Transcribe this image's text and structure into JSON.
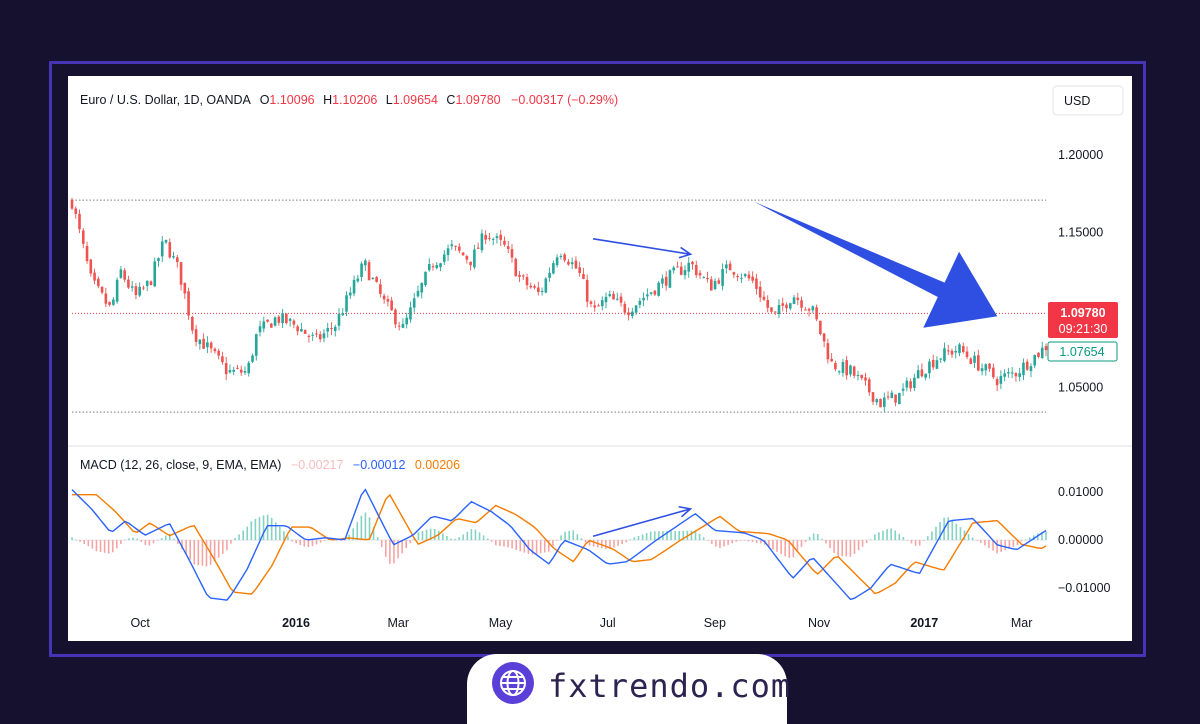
{
  "header": {
    "symbol": "Euro / U.S. Dollar, 1D, OANDA",
    "o_label": "O",
    "o_value": "1.10096",
    "h_label": "H",
    "h_value": "1.10206",
    "l_label": "L",
    "l_value": "1.09654",
    "c_label": "C",
    "c_value": "1.09780",
    "change": "−0.00317 (−0.29%)"
  },
  "currency_button": "USD",
  "price_tag": {
    "value": "1.09780",
    "timer": "09:21:30",
    "color": "#f23645"
  },
  "ma_tag": {
    "value": "1.07654",
    "color": "#089981"
  },
  "macd_header": {
    "label": "MACD (12, 26, close, 9, EMA, EMA)",
    "hist": "−0.00217",
    "macd": "−0.00012",
    "signal": "0.00206"
  },
  "brand": "fxtrendo.com",
  "colors": {
    "up": "#26a69a",
    "down": "#ef5350",
    "macd": "#2962ff",
    "signal": "#f57c00",
    "arrow": "#2f4fe3"
  },
  "chart_data": [
    {
      "type": "candlestick",
      "title": "Euro / U.S. Dollar, 1D, OANDA",
      "y_ticks": [
        "1.20000",
        "1.15000",
        "1.05000"
      ],
      "ylim": [
        1.016,
        1.215
      ],
      "x_ticks": [
        "Oct",
        "2016",
        "Mar",
        "May",
        "Jul",
        "Sep",
        "Nov",
        "2017",
        "Mar"
      ],
      "resistance": 1.171,
      "support": 1.034,
      "last_price": 1.0978,
      "close_path": [
        {
          "t": 0,
          "v": 1.17
        },
        {
          "t": 0.02,
          "v": 1.118
        },
        {
          "t": 0.04,
          "v": 1.1
        },
        {
          "t": 0.05,
          "v": 1.125
        },
        {
          "t": 0.065,
          "v": 1.108
        },
        {
          "t": 0.08,
          "v": 1.118
        },
        {
          "t": 0.095,
          "v": 1.145
        },
        {
          "t": 0.11,
          "v": 1.125
        },
        {
          "t": 0.125,
          "v": 1.085
        },
        {
          "t": 0.14,
          "v": 1.075
        },
        {
          "t": 0.16,
          "v": 1.06
        },
        {
          "t": 0.18,
          "v": 1.06
        },
        {
          "t": 0.19,
          "v": 1.085
        },
        {
          "t": 0.21,
          "v": 1.095
        },
        {
          "t": 0.23,
          "v": 1.09
        },
        {
          "t": 0.25,
          "v": 1.08
        },
        {
          "t": 0.27,
          "v": 1.09
        },
        {
          "t": 0.3,
          "v": 1.13
        },
        {
          "t": 0.32,
          "v": 1.105
        },
        {
          "t": 0.34,
          "v": 1.088
        },
        {
          "t": 0.355,
          "v": 1.11
        },
        {
          "t": 0.37,
          "v": 1.13
        },
        {
          "t": 0.39,
          "v": 1.14
        },
        {
          "t": 0.41,
          "v": 1.132
        },
        {
          "t": 0.425,
          "v": 1.15
        },
        {
          "t": 0.445,
          "v": 1.14
        },
        {
          "t": 0.46,
          "v": 1.12
        },
        {
          "t": 0.48,
          "v": 1.11
        },
        {
          "t": 0.5,
          "v": 1.14
        },
        {
          "t": 0.52,
          "v": 1.125
        },
        {
          "t": 0.535,
          "v": 1.098
        },
        {
          "t": 0.55,
          "v": 1.108
        },
        {
          "t": 0.57,
          "v": 1.1
        },
        {
          "t": 0.59,
          "v": 1.11
        },
        {
          "t": 0.61,
          "v": 1.12
        },
        {
          "t": 0.635,
          "v": 1.13
        },
        {
          "t": 0.655,
          "v": 1.115
        },
        {
          "t": 0.675,
          "v": 1.128
        },
        {
          "t": 0.7,
          "v": 1.118
        },
        {
          "t": 0.72,
          "v": 1.095
        },
        {
          "t": 0.74,
          "v": 1.11
        },
        {
          "t": 0.76,
          "v": 1.1
        },
        {
          "t": 0.78,
          "v": 1.065
        },
        {
          "t": 0.8,
          "v": 1.06
        },
        {
          "t": 0.83,
          "v": 1.04
        },
        {
          "t": 0.85,
          "v": 1.045
        },
        {
          "t": 0.87,
          "v": 1.06
        },
        {
          "t": 0.89,
          "v": 1.07
        },
        {
          "t": 0.91,
          "v": 1.075
        },
        {
          "t": 0.93,
          "v": 1.065
        },
        {
          "t": 0.95,
          "v": 1.055
        },
        {
          "t": 0.97,
          "v": 1.06
        },
        {
          "t": 1.0,
          "v": 1.0765
        }
      ],
      "annotations": [
        {
          "kind": "thin-arrow",
          "from": {
            "t": 0.535,
            "v": 1.146
          },
          "to": {
            "t": 0.635,
            "v": 1.136
          }
        },
        {
          "kind": "bold-arrow",
          "from": {
            "t": 0.7,
            "v": 1.17
          },
          "to": {
            "t": 0.95,
            "v": 1.096
          }
        }
      ]
    },
    {
      "type": "macd",
      "title": "MACD (12, 26, close, 9, EMA, EMA)",
      "y_ticks": [
        "0.01000",
        "0.00000",
        "−0.01000"
      ],
      "ylim": [
        -0.0135,
        0.0125
      ],
      "macd_path": [
        {
          "t": 0,
          "v": 0.0105
        },
        {
          "t": 0.02,
          "v": 0.0065
        },
        {
          "t": 0.04,
          "v": 0.0015
        },
        {
          "t": 0.055,
          "v": 0.004
        },
        {
          "t": 0.075,
          "v": 0.001
        },
        {
          "t": 0.1,
          "v": 0.0035
        },
        {
          "t": 0.12,
          "v": -0.004
        },
        {
          "t": 0.14,
          "v": -0.012
        },
        {
          "t": 0.16,
          "v": -0.0125
        },
        {
          "t": 0.18,
          "v": -0.006
        },
        {
          "t": 0.2,
          "v": 0.003
        },
        {
          "t": 0.22,
          "v": 0.003
        },
        {
          "t": 0.24,
          "v": 0.0
        },
        {
          "t": 0.26,
          "v": 0.0005
        },
        {
          "t": 0.28,
          "v": 0.0
        },
        {
          "t": 0.3,
          "v": 0.011
        },
        {
          "t": 0.33,
          "v": -0.001
        },
        {
          "t": 0.35,
          "v": 0.001
        },
        {
          "t": 0.37,
          "v": 0.005
        },
        {
          "t": 0.39,
          "v": 0.004
        },
        {
          "t": 0.41,
          "v": 0.008
        },
        {
          "t": 0.43,
          "v": 0.006
        },
        {
          "t": 0.45,
          "v": 0.003
        },
        {
          "t": 0.47,
          "v": -0.002
        },
        {
          "t": 0.49,
          "v": -0.005
        },
        {
          "t": 0.505,
          "v": 0.0
        },
        {
          "t": 0.53,
          "v": -0.002
        },
        {
          "t": 0.55,
          "v": -0.005
        },
        {
          "t": 0.57,
          "v": -0.0045
        },
        {
          "t": 0.6,
          "v": 0.0
        },
        {
          "t": 0.64,
          "v": 0.0055
        },
        {
          "t": 0.66,
          "v": 0.002
        },
        {
          "t": 0.69,
          "v": 0.0015
        },
        {
          "t": 0.71,
          "v": 0.0
        },
        {
          "t": 0.74,
          "v": -0.008
        },
        {
          "t": 0.76,
          "v": -0.0035
        },
        {
          "t": 0.8,
          "v": -0.0125
        },
        {
          "t": 0.82,
          "v": -0.01
        },
        {
          "t": 0.84,
          "v": -0.005
        },
        {
          "t": 0.87,
          "v": -0.007
        },
        {
          "t": 0.9,
          "v": 0.004
        },
        {
          "t": 0.925,
          "v": 0.0045
        },
        {
          "t": 0.95,
          "v": -0.001
        },
        {
          "t": 0.97,
          "v": -0.002
        },
        {
          "t": 1.0,
          "v": 0.002
        }
      ],
      "signal_lag": 0.025,
      "annotations": [
        {
          "kind": "thin-arrow",
          "from": {
            "t": 0.535,
            "v": 0.0008
          },
          "to": {
            "t": 0.635,
            "v": 0.0065
          }
        }
      ]
    }
  ]
}
